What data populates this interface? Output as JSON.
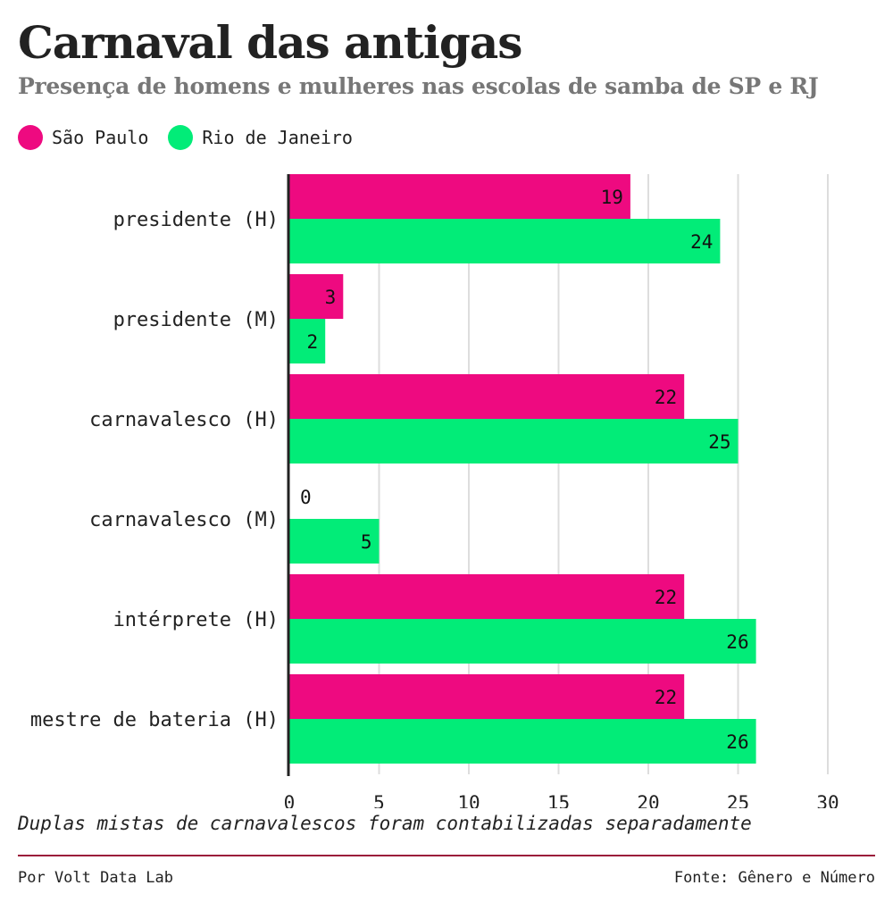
{
  "title": "Carnaval das antigas",
  "subtitle": "Presença de homens e mulheres nas escolas de samba de SP e RJ",
  "legend": [
    {
      "label": "São Paulo",
      "color": "#ee0a80"
    },
    {
      "label": "Rio de Janeiro",
      "color": "#02ec78"
    }
  ],
  "chart_data": {
    "type": "bar",
    "orientation": "horizontal",
    "categories": [
      "presidente (H)",
      "presidente (M)",
      "carnavalesco (H)",
      "carnavalesco (M)",
      "intérprete (H)",
      "mestre de bateria (H)"
    ],
    "series": [
      {
        "name": "São Paulo",
        "color": "#ee0a80",
        "values": [
          19,
          3,
          22,
          0,
          22,
          22
        ]
      },
      {
        "name": "Rio de Janeiro",
        "color": "#02ec78",
        "values": [
          24,
          2,
          25,
          5,
          26,
          26
        ]
      }
    ],
    "xlim": [
      0,
      30
    ],
    "xticks": [
      0,
      5,
      10,
      15,
      20,
      25,
      30
    ],
    "grid": true,
    "legend_position": "top-left"
  },
  "note": "Duplas mistas de carnavalescos foram contabilizadas separadamente",
  "footer": {
    "credit": "Por Volt Data Lab",
    "source": "Fonte: Gênero e Número"
  }
}
